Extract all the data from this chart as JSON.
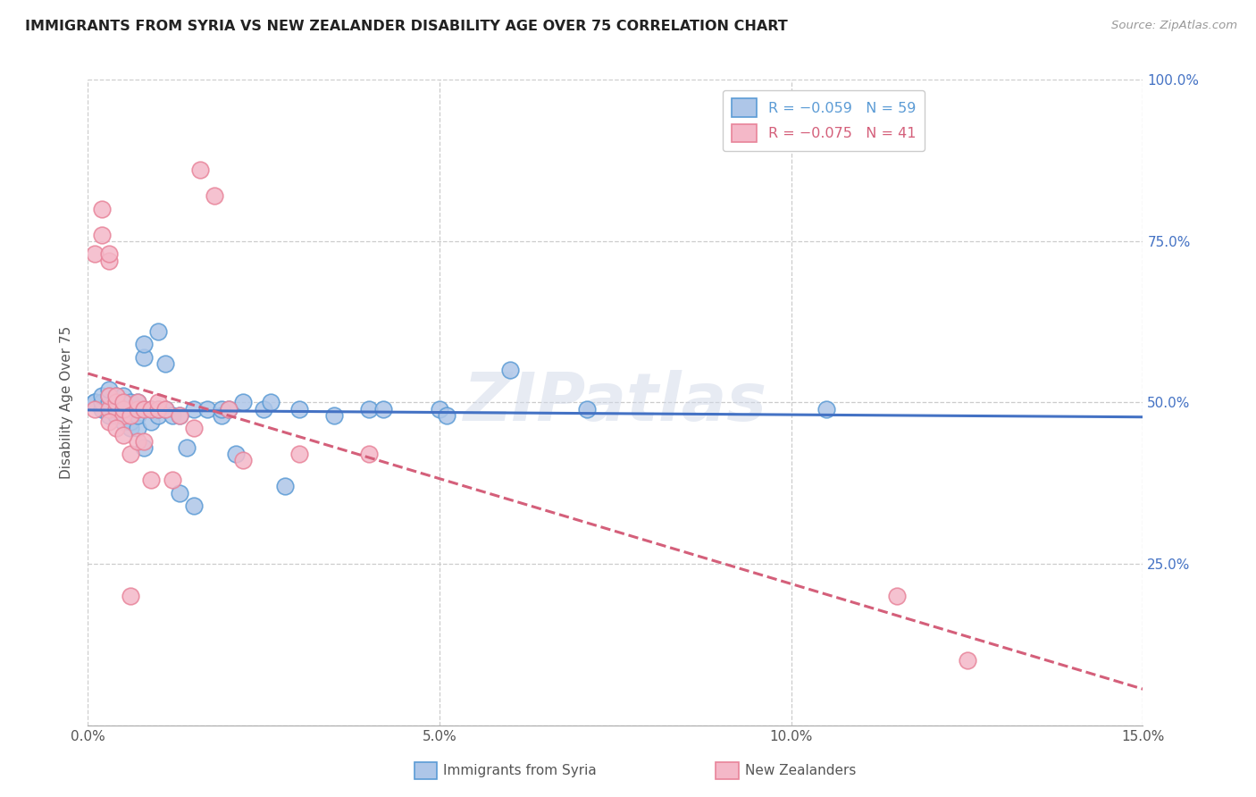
{
  "title": "IMMIGRANTS FROM SYRIA VS NEW ZEALANDER DISABILITY AGE OVER 75 CORRELATION CHART",
  "source": "Source: ZipAtlas.com",
  "ylabel": "Disability Age Over 75",
  "xmin": 0.0,
  "xmax": 0.15,
  "ymin": 0.0,
  "ymax": 1.0,
  "x_ticks": [
    0.0,
    0.05,
    0.1,
    0.15
  ],
  "x_tick_labels": [
    "0.0%",
    "5.0%",
    "10.0%",
    "15.0%"
  ],
  "y_ticks": [
    0.0,
    0.25,
    0.5,
    0.75,
    1.0
  ],
  "y_tick_labels_right": [
    "",
    "25.0%",
    "50.0%",
    "75.0%",
    "100.0%"
  ],
  "series1_label": "Immigrants from Syria",
  "series2_label": "New Zealanders",
  "series1_color": "#aec6e8",
  "series2_color": "#f4b8c8",
  "series1_edge_color": "#5b9bd5",
  "series2_edge_color": "#e8849a",
  "series1_line_color": "#4472c4",
  "series2_line_color": "#d45f7a",
  "legend_label1": "R = −0.059   N = 59",
  "legend_label2": "R = −0.075   N = 41",
  "legend_text_color1": "#5b9bd5",
  "legend_text_color2": "#d45f7a",
  "watermark": "ZIPatlas",
  "background_color": "#ffffff",
  "grid_color": "#cccccc",
  "title_color": "#222222",
  "axis_label_color": "#555555",
  "right_axis_color": "#4472c4",
  "series1_x": [
    0.001,
    0.001,
    0.002,
    0.002,
    0.002,
    0.003,
    0.003,
    0.003,
    0.003,
    0.003,
    0.004,
    0.004,
    0.004,
    0.004,
    0.005,
    0.005,
    0.005,
    0.005,
    0.006,
    0.006,
    0.006,
    0.006,
    0.007,
    0.007,
    0.007,
    0.008,
    0.008,
    0.008,
    0.009,
    0.009,
    0.01,
    0.01,
    0.01,
    0.011,
    0.011,
    0.012,
    0.013,
    0.013,
    0.014,
    0.015,
    0.015,
    0.017,
    0.019,
    0.019,
    0.02,
    0.021,
    0.022,
    0.025,
    0.026,
    0.028,
    0.03,
    0.035,
    0.04,
    0.042,
    0.05,
    0.051,
    0.06,
    0.071,
    0.105
  ],
  "series1_y": [
    0.5,
    0.5,
    0.49,
    0.5,
    0.51,
    0.48,
    0.49,
    0.5,
    0.51,
    0.52,
    0.48,
    0.49,
    0.5,
    0.51,
    0.47,
    0.48,
    0.5,
    0.51,
    0.46,
    0.47,
    0.49,
    0.5,
    0.46,
    0.48,
    0.5,
    0.43,
    0.57,
    0.59,
    0.47,
    0.49,
    0.48,
    0.49,
    0.61,
    0.49,
    0.56,
    0.48,
    0.36,
    0.48,
    0.43,
    0.34,
    0.49,
    0.49,
    0.48,
    0.49,
    0.49,
    0.42,
    0.5,
    0.49,
    0.5,
    0.37,
    0.49,
    0.48,
    0.49,
    0.49,
    0.49,
    0.48,
    0.55,
    0.49,
    0.49
  ],
  "series2_x": [
    0.001,
    0.001,
    0.002,
    0.002,
    0.003,
    0.003,
    0.003,
    0.003,
    0.004,
    0.004,
    0.004,
    0.005,
    0.005,
    0.005,
    0.006,
    0.006,
    0.006,
    0.007,
    0.007,
    0.007,
    0.008,
    0.008,
    0.009,
    0.009,
    0.01,
    0.01,
    0.011,
    0.012,
    0.013,
    0.015,
    0.016,
    0.018,
    0.02,
    0.022,
    0.03,
    0.04,
    0.115,
    0.125,
    0.003,
    0.004,
    0.005
  ],
  "series2_y": [
    0.49,
    0.73,
    0.76,
    0.8,
    0.49,
    0.51,
    0.72,
    0.73,
    0.49,
    0.5,
    0.51,
    0.48,
    0.49,
    0.5,
    0.2,
    0.42,
    0.48,
    0.44,
    0.49,
    0.5,
    0.44,
    0.49,
    0.38,
    0.49,
    0.49,
    0.5,
    0.49,
    0.38,
    0.48,
    0.46,
    0.86,
    0.82,
    0.49,
    0.41,
    0.42,
    0.42,
    0.2,
    0.1,
    0.47,
    0.46,
    0.45
  ]
}
